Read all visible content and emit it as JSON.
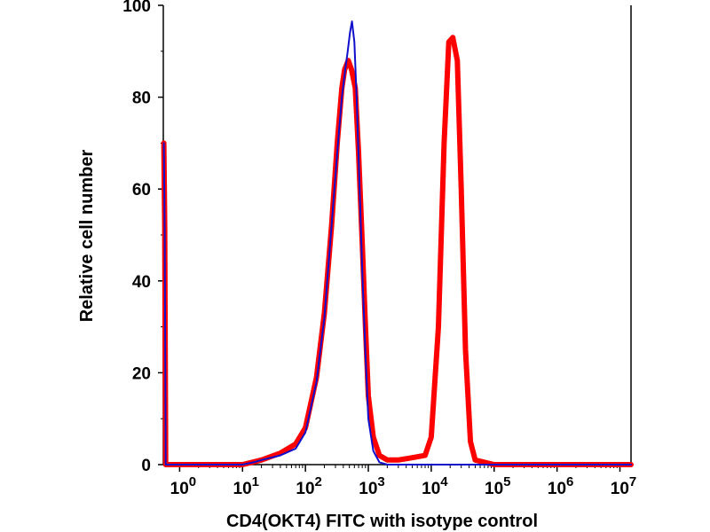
{
  "chart_data": {
    "type": "line",
    "title": "",
    "xlabel": "CD4(OKT4) FITC with isotype control",
    "ylabel": "Relative cell number",
    "xscale": "log",
    "xlim": [
      0.55,
      15000000
    ],
    "ylim": [
      0,
      100
    ],
    "grid": false,
    "y_ticks": [
      0,
      20,
      40,
      60,
      80,
      100
    ],
    "x_tick_labels": [
      {
        "value": 1,
        "base": "10",
        "exp": "0"
      },
      {
        "value": 10,
        "base": "10",
        "exp": "1"
      },
      {
        "value": 100,
        "base": "10",
        "exp": "2"
      },
      {
        "value": 1000,
        "base": "10",
        "exp": "3"
      },
      {
        "value": 10000,
        "base": "10",
        "exp": "4"
      },
      {
        "value": 100000,
        "base": "10",
        "exp": "5"
      },
      {
        "value": 1000000,
        "base": "10",
        "exp": "6"
      },
      {
        "value": 10000000,
        "base": "10",
        "exp": "7"
      }
    ],
    "series": [
      {
        "name": "CD4(OKT4) FITC",
        "color": "#ff0000",
        "points": [
          [
            0.56,
            70
          ],
          [
            0.58,
            52
          ],
          [
            0.6,
            0
          ],
          [
            10,
            0
          ],
          [
            20,
            1
          ],
          [
            40,
            2.5
          ],
          [
            70,
            4.5
          ],
          [
            100,
            8
          ],
          [
            150,
            19
          ],
          [
            200,
            33
          ],
          [
            260,
            52
          ],
          [
            320,
            70
          ],
          [
            380,
            82
          ],
          [
            420,
            86
          ],
          [
            480,
            88
          ],
          [
            540,
            86
          ],
          [
            620,
            82
          ],
          [
            700,
            68
          ],
          [
            800,
            48
          ],
          [
            900,
            30
          ],
          [
            1000,
            15
          ],
          [
            1200,
            6
          ],
          [
            1500,
            2
          ],
          [
            2000,
            1
          ],
          [
            3000,
            1
          ],
          [
            5000,
            1.5
          ],
          [
            8000,
            2
          ],
          [
            10000,
            6
          ],
          [
            13000,
            30
          ],
          [
            16000,
            70
          ],
          [
            19000,
            92
          ],
          [
            22000,
            93
          ],
          [
            26000,
            88
          ],
          [
            30000,
            60
          ],
          [
            35000,
            25
          ],
          [
            42000,
            5
          ],
          [
            50000,
            1
          ],
          [
            100000,
            0
          ],
          [
            15000000,
            0
          ]
        ]
      },
      {
        "name": "isotype control",
        "color": "#1010cc",
        "points": [
          [
            0.56,
            70
          ],
          [
            0.58,
            50
          ],
          [
            0.6,
            0
          ],
          [
            10,
            0
          ],
          [
            15,
            0.5
          ],
          [
            20,
            1
          ],
          [
            40,
            2
          ],
          [
            70,
            3.5
          ],
          [
            100,
            7
          ],
          [
            150,
            18
          ],
          [
            200,
            32
          ],
          [
            260,
            52
          ],
          [
            320,
            68
          ],
          [
            380,
            80
          ],
          [
            430,
            86
          ],
          [
            470,
            90
          ],
          [
            510,
            94
          ],
          [
            550,
            96.5
          ],
          [
            600,
            92
          ],
          [
            650,
            80
          ],
          [
            720,
            62
          ],
          [
            800,
            42
          ],
          [
            900,
            24
          ],
          [
            1000,
            10
          ],
          [
            1200,
            3
          ],
          [
            1500,
            0.5
          ],
          [
            2000,
            0
          ],
          [
            15000000,
            0
          ]
        ]
      }
    ]
  }
}
